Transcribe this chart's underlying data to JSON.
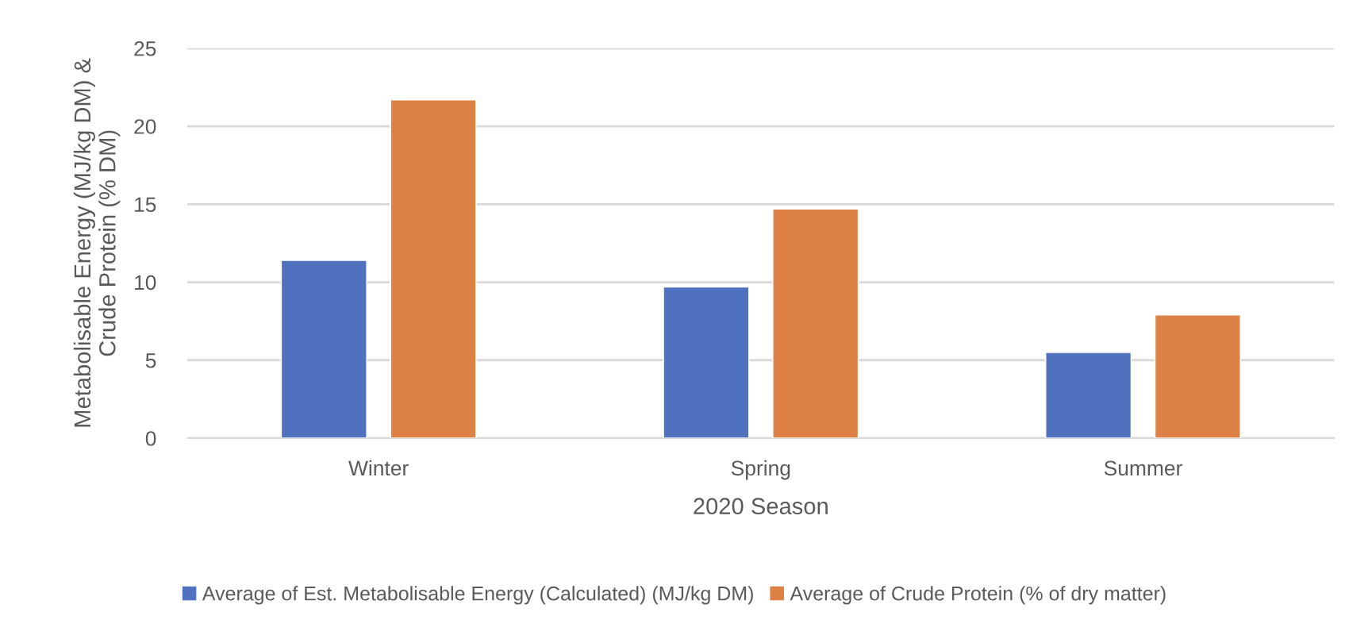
{
  "chart_data": {
    "type": "bar",
    "xlabel": "2020 Season",
    "ylabel": "Metabolisable Energy (MJ/kg DM) &\nCrude Protein (% DM)",
    "categories": [
      "Winter",
      "Spring",
      "Summer"
    ],
    "series": [
      {
        "name": "Average of Est. Metabolisable Energy (Calculated) (MJ/kg DM)",
        "color": "#4f71be",
        "values": [
          11.4,
          9.7,
          5.5
        ]
      },
      {
        "name": "Average of Crude Protein (% of dry matter)",
        "color": "#dd8144",
        "values": [
          21.7,
          14.7,
          7.9
        ]
      }
    ],
    "ylim": [
      0,
      25
    ],
    "yticks": [
      0,
      5,
      10,
      15,
      20,
      25
    ],
    "grid": "y",
    "legend": "bottom"
  }
}
